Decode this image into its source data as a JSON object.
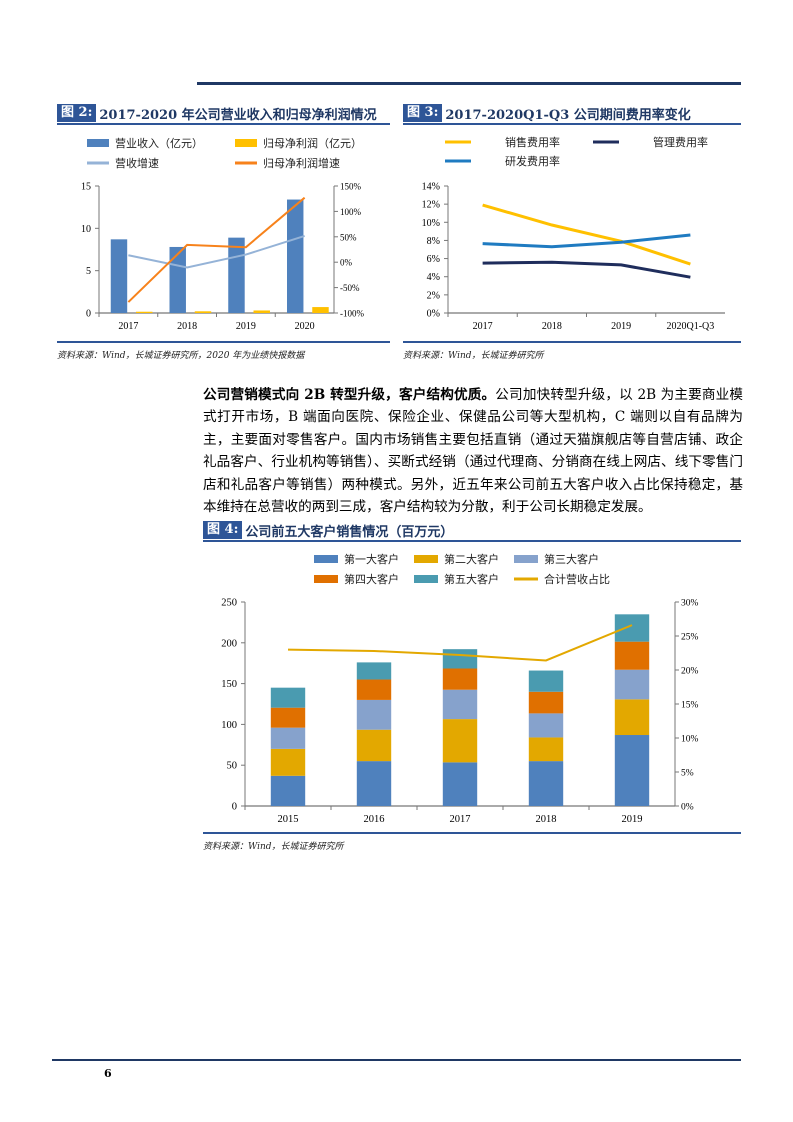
{
  "page_number": "6",
  "colors": {
    "brand_navy": "#1f3864",
    "accent_blue": "#2e5597"
  },
  "figures": {
    "fig2": {
      "label": "图 2:",
      "title": "2017-2020 年公司营业收入和归母净利润情况",
      "source": "资料来源：Wind，长城证券研究所，2020 年为业绩快报数据"
    },
    "fig3": {
      "label": "图 3:",
      "title": "2017-2020Q1-Q3 公司期间费用率变化",
      "source": "资料来源：Wind，长城证券研究所"
    },
    "fig4": {
      "label": "图 4:",
      "title": "公司前五大客户销售情况（百万元）",
      "source": "资料来源：Wind，长城证券研究所"
    }
  },
  "paragraph": {
    "lead": "公司营销模式向 2B 转型升级，客户结构优质。",
    "body": "公司加快转型升级，以 2B 为主要商业模式打开市场，B 端面向医院、保险企业、保健品公司等大型机构，C 端则以自有品牌为主，主要面对零售客户。国内市场销售主要包括直销（通过天猫旗舰店等自营店铺、政企礼品客户、行业机构等销售）、买断式经销（通过代理商、分销商在线上网店、线下零售门店和礼品客户等销售）两种模式。另外，近五年来公司前五大客户收入占比保持稳定，基本维持在总营收的两到三成，客户结构较为分散，利于公司长期稳定发展。"
  },
  "chart_data": [
    {
      "type": "bar",
      "categories": [
        "2017",
        "2018",
        "2019",
        "2020"
      ],
      "series": [
        {
          "name": "营业收入（亿元）",
          "kind": "bar",
          "axis": "left",
          "color": "#4f81bd",
          "values": [
            8.7,
            7.8,
            8.9,
            13.4
          ]
        },
        {
          "name": "归母净利润（亿元）",
          "kind": "bar",
          "axis": "left",
          "color": "#ffc000",
          "values": [
            0.15,
            0.2,
            0.3,
            0.7
          ]
        },
        {
          "name": "营收增速",
          "kind": "line",
          "axis": "right",
          "color": "#95b3d7",
          "values": [
            13.7,
            -10.5,
            15,
            51.7
          ]
        },
        {
          "name": "归母净利润增速",
          "kind": "line",
          "axis": "right",
          "color": "#f7821b",
          "values": [
            -78.5,
            34,
            29.5,
            127
          ]
        }
      ],
      "ylim": [
        0,
        15
      ],
      "yticks": [
        "0",
        "5",
        "10",
        "15"
      ],
      "y2lim": [
        -100,
        150
      ],
      "y2ticks": [
        "-100%",
        "-50%",
        "0%",
        "50%",
        "100%",
        "150%"
      ],
      "legend": "top",
      "grid": false
    },
    {
      "type": "line",
      "categories": [
        "2017",
        "2018",
        "2019",
        "2020Q1-Q3"
      ],
      "series": [
        {
          "name": "销售费用率",
          "color": "#ffc000",
          "values": [
            11.9,
            9.7,
            7.9,
            5.4
          ]
        },
        {
          "name": "管理费用率",
          "color": "#1f2d5c",
          "values": [
            5.5,
            5.6,
            5.3,
            3.95
          ]
        },
        {
          "name": "研发费用率",
          "color": "#1f7bc1",
          "values": [
            7.65,
            7.3,
            7.8,
            8.6
          ]
        }
      ],
      "ylim": [
        0,
        14
      ],
      "yticks": [
        "0%",
        "2%",
        "4%",
        "6%",
        "8%",
        "10%",
        "12%",
        "14%"
      ],
      "legend": "top",
      "grid": false
    },
    {
      "type": "bar",
      "stacked": true,
      "categories": [
        "2015",
        "2016",
        "2017",
        "2018",
        "2019"
      ],
      "series": [
        {
          "name": "第一大客户",
          "kind": "bar",
          "axis": "left",
          "color": "#4f81bd",
          "values": [
            37,
            55,
            53.5,
            55,
            87
          ]
        },
        {
          "name": "第二大客户",
          "kind": "bar",
          "axis": "left",
          "color": "#e3a800",
          "values": [
            33,
            38.5,
            53,
            29,
            43.7
          ]
        },
        {
          "name": "第三大客户",
          "kind": "bar",
          "axis": "left",
          "color": "#86a2cc",
          "values": [
            26,
            36.5,
            36,
            29.5,
            36.3
          ]
        },
        {
          "name": "第四大客户",
          "kind": "bar",
          "axis": "left",
          "color": "#e07000",
          "values": [
            24.5,
            25,
            26,
            26.5,
            34.4
          ]
        },
        {
          "name": "第五大客户",
          "kind": "bar",
          "axis": "left",
          "color": "#4a9bb0",
          "values": [
            24.5,
            21,
            23.7,
            26,
            33.5
          ]
        },
        {
          "name": "合计营收占比",
          "kind": "line",
          "axis": "right",
          "color": "#e3a800",
          "values": [
            23.0,
            22.8,
            22.2,
            21.4,
            26.6
          ]
        }
      ],
      "ylim": [
        0,
        250
      ],
      "yticks": [
        "0",
        "50",
        "100",
        "150",
        "200",
        "250"
      ],
      "y2lim": [
        0,
        30
      ],
      "y2ticks": [
        "0%",
        "5%",
        "10%",
        "15%",
        "20%",
        "25%",
        "30%"
      ],
      "legend": "top",
      "grid": false
    }
  ]
}
